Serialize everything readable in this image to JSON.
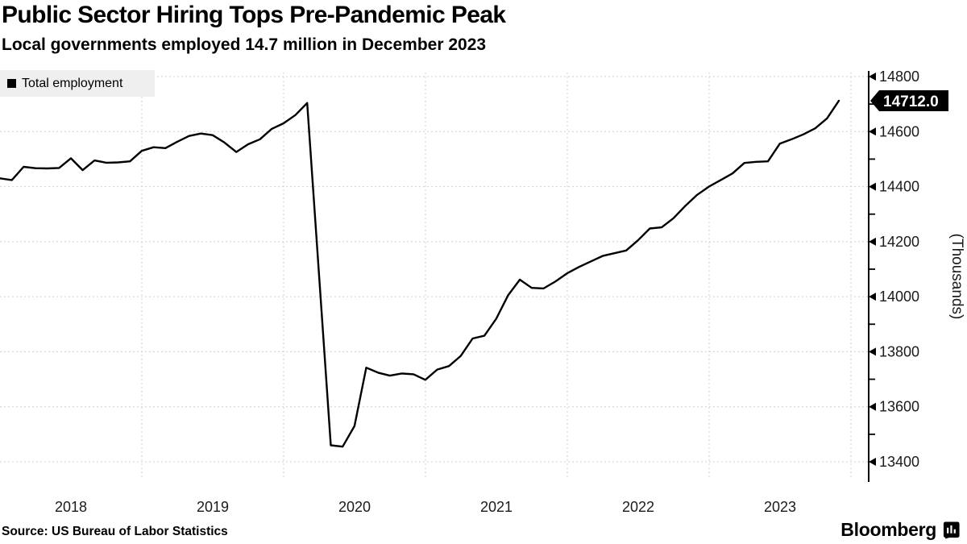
{
  "header": {
    "title": "Public Sector Hiring Tops Pre-Pandemic Peak",
    "subtitle": "Local governments employed 14.7 million in December 2023"
  },
  "legend": {
    "label": "Total employment",
    "swatch_color": "#000000"
  },
  "footer": {
    "source": "Source: US Bureau of Labor Statistics",
    "brand": "Bloomberg"
  },
  "colors": {
    "line": "#000000",
    "grid": "#cfcfcf",
    "axis": "#000000",
    "legend_bg": "#efefef",
    "badge_bg": "#000000",
    "badge_text": "#ffffff",
    "tick_label": "#1a1a1a"
  },
  "chart_data": {
    "type": "line",
    "title": "Public Sector Hiring Tops Pre-Pandemic Peak",
    "subtitle": "Local governments employed 14.7 million in December 2023",
    "grid": {
      "style": "dashed",
      "on": true
    },
    "legend_position": "top-left",
    "x_axis": {
      "start": "2018-01",
      "end": "2023-12",
      "frequency": "monthly",
      "tick_labels": [
        "2018",
        "2019",
        "2020",
        "2021",
        "2022",
        "2023"
      ]
    },
    "y_axis": {
      "label": "(Thousands)",
      "min": 13400,
      "max": 14800,
      "major_ticks": [
        14800,
        14600,
        14400,
        14200,
        14000,
        13800,
        13600,
        13400
      ],
      "minor_ticks": [
        14700,
        14500,
        14300,
        14100,
        13900,
        13700,
        13500
      ]
    },
    "annotation": {
      "last_value_label": "14712.0",
      "value": 14712
    },
    "series": [
      {
        "name": "Total employment",
        "color": "#000000",
        "values": [
          14430,
          14424,
          14472,
          14467,
          14466,
          14468,
          14503,
          14460,
          14495,
          14487,
          14488,
          14492,
          14530,
          14543,
          14540,
          14563,
          14584,
          14593,
          14587,
          14560,
          14526,
          14554,
          14572,
          14610,
          14630,
          14660,
          14704,
          14080,
          13460,
          13455,
          13530,
          13742,
          13724,
          13713,
          13721,
          13718,
          13698,
          13735,
          13748,
          13785,
          13848,
          13858,
          13920,
          14005,
          14062,
          14032,
          14030,
          14055,
          14085,
          14108,
          14128,
          14148,
          14158,
          14168,
          14205,
          14248,
          14252,
          14285,
          14330,
          14370,
          14400,
          14424,
          14448,
          14486,
          14490,
          14492,
          14556,
          14572,
          14590,
          14612,
          14648,
          14712
        ]
      }
    ]
  }
}
